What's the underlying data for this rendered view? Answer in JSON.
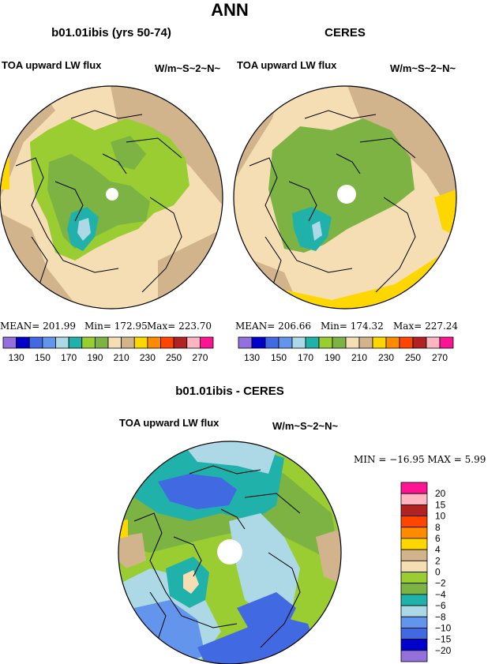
{
  "page_title": "ANN",
  "panels": [
    {
      "title": "b01.01ibis (yrs 50-74)",
      "variable": "TOA upward LW flux",
      "units": "W/m~S~2~N~",
      "stats": {
        "mean": "MEAN= 201.99",
        "min": "Min= 172.95",
        "max": "Max= 223.70"
      }
    },
    {
      "title": "CERES",
      "variable": "TOA upward LW flux",
      "units": "W/m~S~2~N~",
      "stats": {
        "mean": "MEAN= 206.66",
        "min": "Min= 174.32",
        "max": "Max= 227.24"
      }
    }
  ],
  "abs_colorbar": {
    "colors": [
      "#9370db",
      "#0000cd",
      "#4169e1",
      "#6495ed",
      "#add8e6",
      "#20b2aa",
      "#9acd32",
      "#7cb342",
      "#f5deb3",
      "#d2b48c",
      "#ffd700",
      "#ff8c00",
      "#ff4500",
      "#b22222",
      "#ffb6c1",
      "#ff1493"
    ],
    "labels": [
      "130",
      "150",
      "170",
      "190",
      "210",
      "230",
      "250",
      "270"
    ]
  },
  "diff_panel": {
    "title": "b01.01ibis - CERES",
    "variable": "TOA upward LW flux",
    "units": "W/m~S~2~N~",
    "stats": "MIN = −16.95 MAX =    5.99"
  },
  "diff_colorbar": {
    "colors": [
      "#ff1493",
      "#ffb6c1",
      "#b22222",
      "#ff4500",
      "#ff8c00",
      "#ffd700",
      "#d2b48c",
      "#f5deb3",
      "#9acd32",
      "#7cb342",
      "#20b2aa",
      "#add8e6",
      "#6495ed",
      "#4169e1",
      "#0000cd",
      "#9370db"
    ],
    "labels": [
      "20",
      "15",
      "10",
      "8",
      "6",
      "4",
      "2",
      "0",
      "−2",
      "−4",
      "−6",
      "−8",
      "−10",
      "−15",
      "−20"
    ]
  },
  "map_colors": {
    "wheat": "#f5deb3",
    "tan": "#d2b48c",
    "green": "#7cb342",
    "yellowgreen": "#9acd32",
    "teal": "#20b2aa",
    "lightblue": "#add8e6",
    "blue": "#4169e1",
    "cornflower": "#6495ed",
    "gold": "#ffd700"
  }
}
